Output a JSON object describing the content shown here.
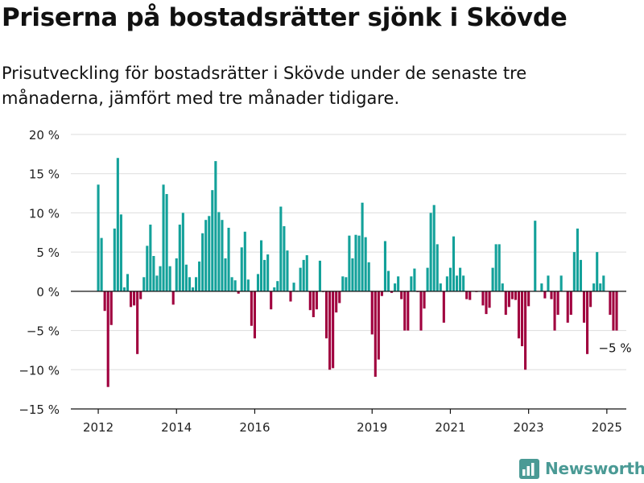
{
  "title": "Priserna på bostadsrätter sjönk i Skövde",
  "subtitle": "Prisutveckling för bostadsrätter i Skövde under de senaste tre månaderna, jämfört med tre månader tidigare.",
  "brand": {
    "name": "Newsworthy",
    "icon": "bar-chart-logo-icon"
  },
  "colors": {
    "positive": "#13a19a",
    "negative": "#a0003e",
    "axis": "#111111",
    "grid": "#dddddd",
    "brand": "#4a9a95"
  },
  "chart_data": {
    "type": "bar",
    "title": "",
    "xlabel": "",
    "ylabel": "",
    "ylim": [
      -15,
      20
    ],
    "grid": true,
    "y_ticks": [
      20,
      15,
      10,
      5,
      0,
      -5,
      -10,
      -15
    ],
    "y_tick_labels": [
      "20 %",
      "15 %",
      "10 %",
      "5 %",
      "0 %",
      "−5 %",
      "−10 %",
      "−15 %"
    ],
    "x_ticks": [
      {
        "label": "2012",
        "year": 2012
      },
      {
        "label": "2014",
        "year": 2014
      },
      {
        "label": "2016",
        "year": 2016
      },
      {
        "label": "2019",
        "year": 2019
      },
      {
        "label": "2021",
        "year": 2021
      },
      {
        "label": "2023",
        "year": 2023
      },
      {
        "label": "2025",
        "year": 2025
      }
    ],
    "annotation": {
      "text": "−5 %",
      "value": -5
    },
    "series": [
      {
        "values": [
          13.6,
          6.8,
          -2.5,
          -12.2,
          -4.3,
          8,
          17,
          9.8,
          0.5,
          2.2,
          -2,
          -1.8,
          -8,
          -1,
          1.8,
          5.8,
          8.5,
          4.5,
          2,
          3.2,
          13.6,
          12.4,
          3.2,
          -1.7,
          4.2,
          8.5,
          10,
          3.4,
          1.8,
          0.5,
          1.8,
          3.8,
          7.4,
          9.1,
          9.6,
          12.9,
          16.6,
          10.1,
          9.1,
          4.2,
          8.1,
          1.8,
          1.4,
          -0.3,
          5.6,
          7.6,
          1.5,
          -4.4,
          -6,
          2.2,
          6.5,
          4,
          4.7,
          -2.3,
          0.5,
          1.3,
          10.8,
          8.3,
          5.2,
          -1.3,
          1.1,
          0.1,
          3,
          4,
          4.6,
          -2.4,
          -3.3,
          -2.3,
          3.9,
          -0.1,
          -6,
          -10,
          -9.8,
          -2.7,
          -1.5,
          1.9,
          1.8,
          7.1,
          4.2,
          7.2,
          7.1,
          11.3,
          6.9,
          3.7,
          -5.5,
          -10.9,
          -8.7,
          -0.6,
          6.4,
          2.6,
          -0.2,
          1,
          1.9,
          -1,
          -5,
          -5,
          1.9,
          2.9,
          -0.1,
          -5,
          -2.2,
          3,
          10,
          11,
          6,
          1,
          -4,
          1.9,
          3,
          7,
          2,
          3,
          2,
          -1,
          -1.1,
          0,
          -0.1,
          0,
          -1.8,
          -2.9,
          -2.1,
          3,
          6,
          6,
          1,
          -3,
          -2,
          -1,
          -1.1,
          -6,
          -7,
          -10,
          -1.9,
          0,
          9,
          0,
          1,
          -0.9,
          2,
          -1,
          -5,
          -3,
          2,
          0,
          -4,
          -3,
          5,
          8,
          4,
          -4,
          -8,
          -2,
          1,
          5,
          1,
          2,
          0,
          -3,
          -5,
          -5
        ]
      }
    ]
  }
}
